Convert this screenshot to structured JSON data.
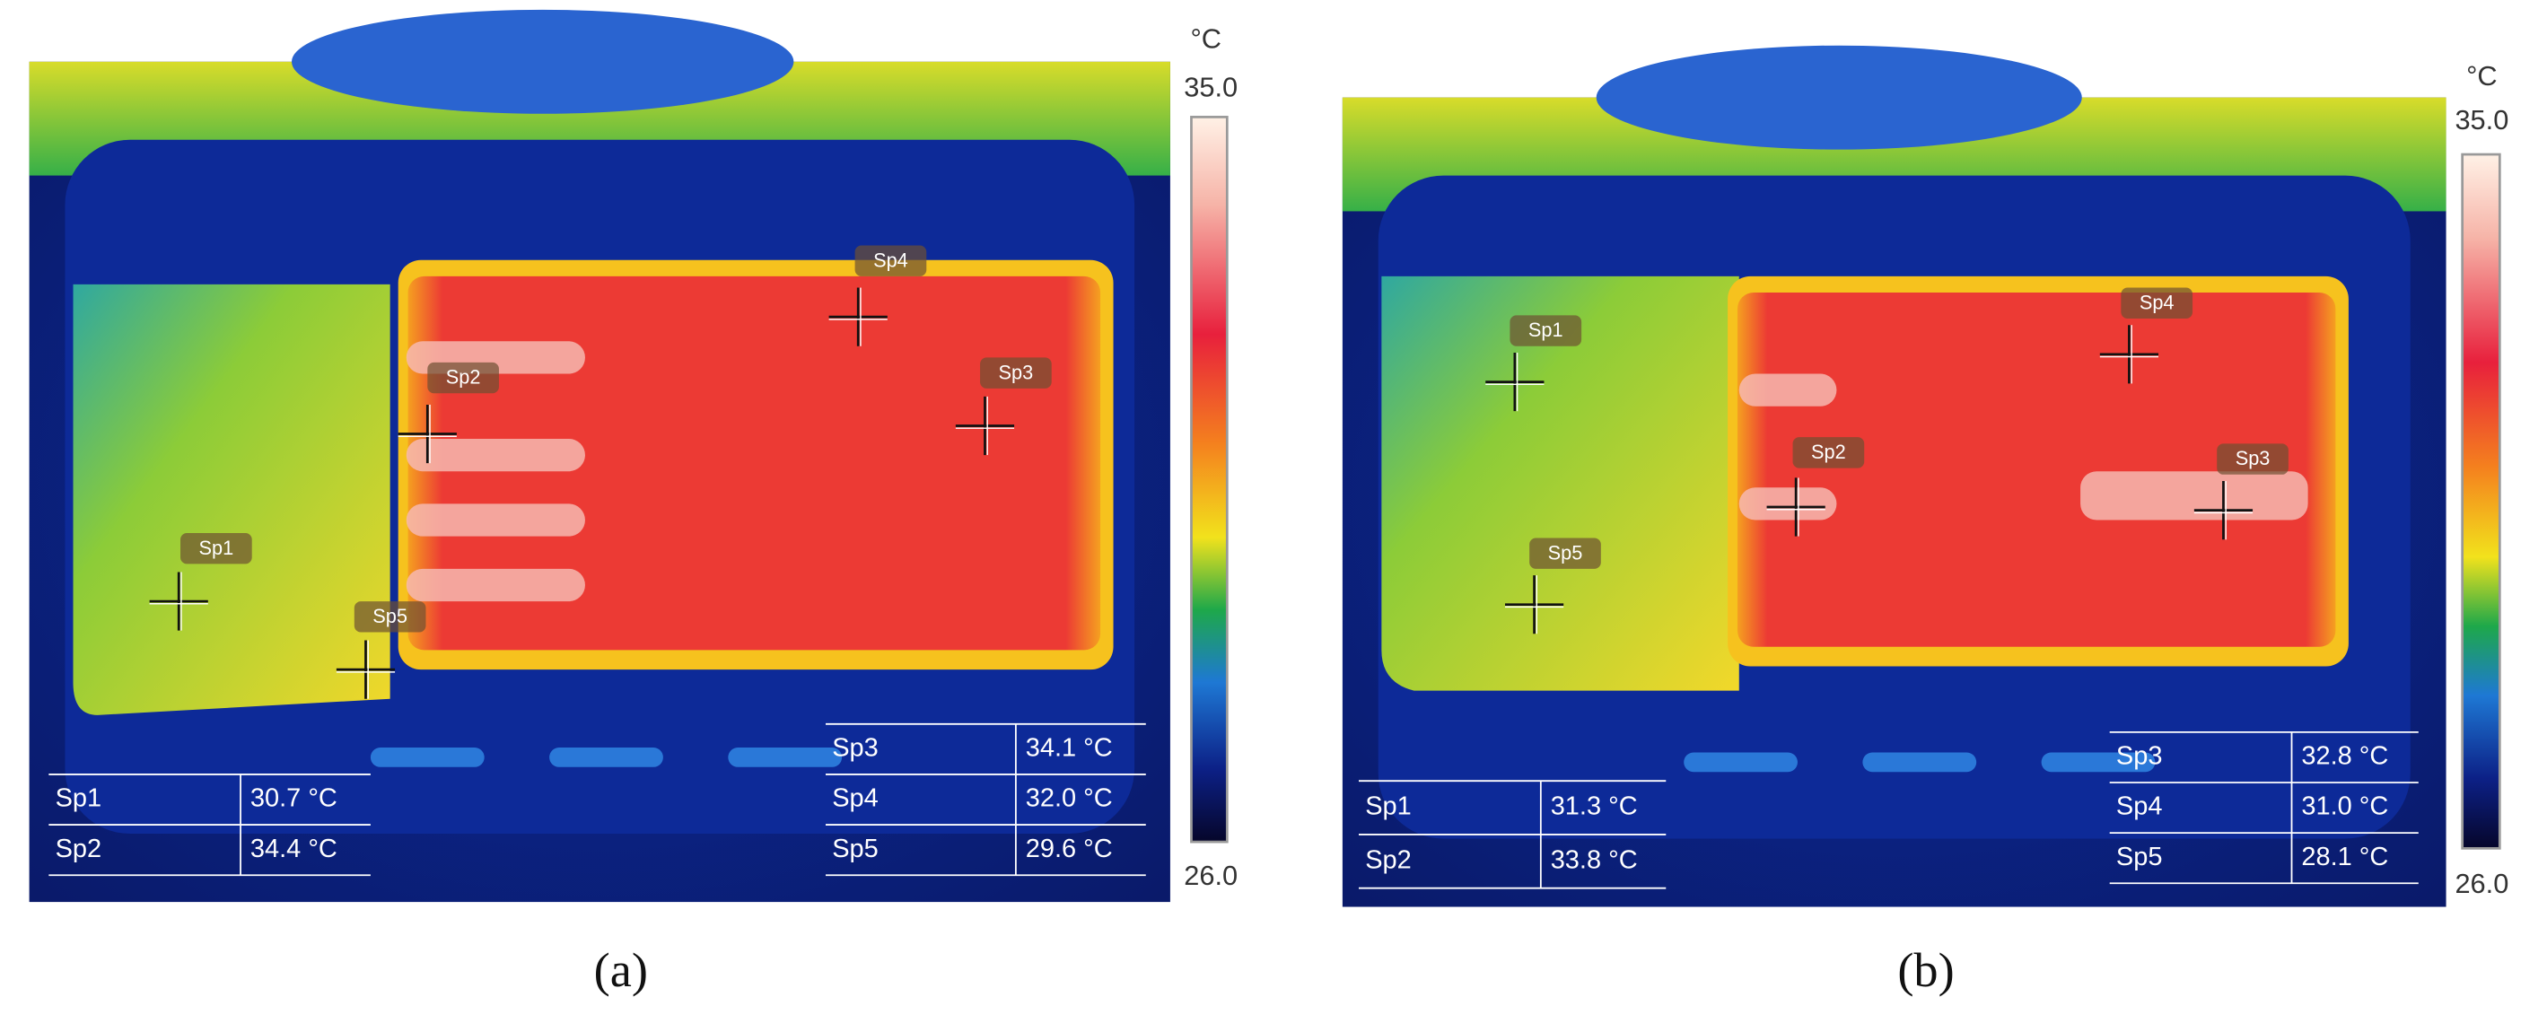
{
  "panels": [
    {
      "label": "(a)",
      "scale": {
        "unit": "°C",
        "max": "35.0",
        "min": "26.0"
      },
      "spots": [
        "Sp1",
        "Sp2",
        "Sp3",
        "Sp4",
        "Sp5"
      ],
      "tables": [
        {
          "rows": [
            [
              "Sp1",
              "30.7 °C"
            ],
            [
              "Sp2",
              "34.4 °C"
            ]
          ]
        },
        {
          "rows": [
            [
              "Sp3",
              "34.1 °C"
            ],
            [
              "Sp4",
              "32.0 °C"
            ],
            [
              "Sp5",
              "29.6 °C"
            ]
          ]
        }
      ]
    },
    {
      "label": "(b)",
      "scale": {
        "unit": "°C",
        "max": "35.0",
        "min": "26.0"
      },
      "spots": [
        "Sp1",
        "Sp2",
        "Sp3",
        "Sp4",
        "Sp5"
      ],
      "tables": [
        {
          "rows": [
            [
              "Sp1",
              "31.3 °C"
            ],
            [
              "Sp2",
              "33.8 °C"
            ]
          ]
        },
        {
          "rows": [
            [
              "Sp3",
              "32.8 °C"
            ],
            [
              "Sp4",
              "31.0 °C"
            ],
            [
              "Sp5",
              "28.1 °C"
            ]
          ]
        }
      ]
    }
  ]
}
